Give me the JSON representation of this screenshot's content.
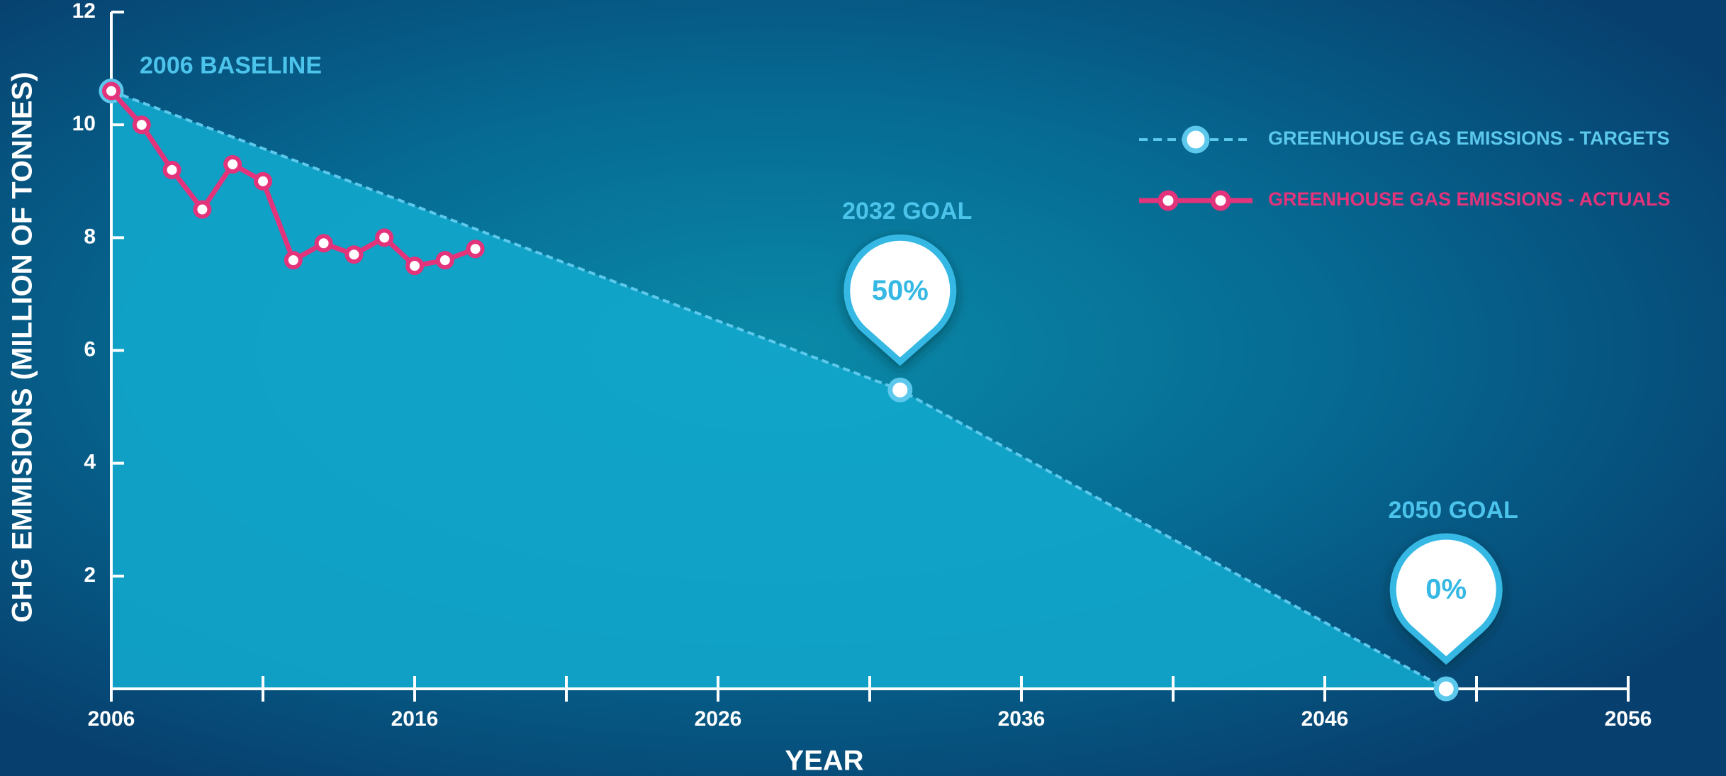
{
  "chart_data": {
    "type": "line",
    "xlabel": "YEAR",
    "ylabel": "GHG EMMISIONS (MILLION OF TONNES)",
    "xlim": [
      2006,
      2056
    ],
    "xticks": [
      2006,
      2016,
      2026,
      2036,
      2046,
      2056
    ],
    "xticks_minor": [
      2011,
      2021,
      2031,
      2041,
      2051
    ],
    "ylim": [
      0,
      12
    ],
    "yticks": [
      2,
      4,
      6,
      8,
      10,
      12
    ],
    "legend": "top-right",
    "series": [
      {
        "name": "GREENHOUSE GAS EMISSIONS - TARGETS",
        "color": "#5cc8ec",
        "dashed": true,
        "x": [
          2006,
          2032,
          2050
        ],
        "values": [
          10.6,
          5.3,
          0
        ]
      },
      {
        "name": "GREENHOUSE GAS EMISSIONS - ACTUALS",
        "color": "#e3337b",
        "x": [
          2006,
          2007,
          2008,
          2009,
          2010,
          2011,
          2012,
          2013,
          2014,
          2015,
          2016,
          2017,
          2018
        ],
        "values": [
          10.6,
          10.0,
          9.2,
          8.5,
          9.3,
          9.0,
          7.6,
          7.9,
          7.7,
          8.0,
          7.5,
          7.6,
          7.8
        ]
      }
    ],
    "annotations": [
      {
        "text": "2006 BASELINE",
        "x": 2006
      },
      {
        "text": "2032 GOAL",
        "x": 2032,
        "pin": "50%"
      },
      {
        "text": "2050 GOAL",
        "x": 2050,
        "pin": "0%"
      }
    ]
  }
}
